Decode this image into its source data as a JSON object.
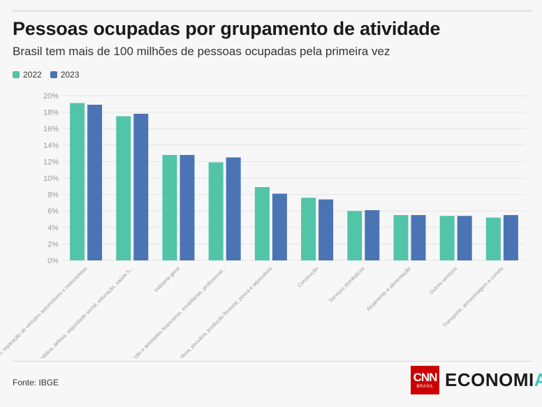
{
  "header": {
    "title": "Pessoas ocupadas por grupamento de atividade",
    "subtitle": "Brasil tem mais de 100 milhões de pessoas ocupadas pela primeira vez"
  },
  "footer": {
    "source": "Fonte: IBGE",
    "logo_cnn": "CNN",
    "logo_cnn_sub": "BRASIL",
    "logo_economia_main": "ECONOMI",
    "logo_economia_accent": "A"
  },
  "colors": {
    "2022": "#52c4a8",
    "2023": "#4a74b4",
    "grid": "#e3e3e3",
    "axis_text": "#999999"
  },
  "chart_data": {
    "type": "bar",
    "categories": [
      "Comércio, reparação de veículos automotores e motocicletas",
      "Administração pública, defesa, seguridade social, educação, saúde h...",
      "Indústria geral",
      "Informação, comunicação e atividades financeiras, imobiliárias, profissional...",
      "Agricultura, pecuária, produção florestal, pesca e aquicultura",
      "Construção",
      "Serviços domésticos",
      "Alojamento e alimentação",
      "Outros serviços",
      "Transporte, armazenagem e correio"
    ],
    "series": [
      {
        "name": "2022",
        "values": [
          19.1,
          17.5,
          12.8,
          11.9,
          8.9,
          7.6,
          6.0,
          5.5,
          5.4,
          5.2
        ]
      },
      {
        "name": "2023",
        "values": [
          18.9,
          17.8,
          12.8,
          12.5,
          8.1,
          7.4,
          6.1,
          5.5,
          5.4,
          5.5
        ]
      }
    ],
    "y_ticks": [
      "0%",
      "2%",
      "4%",
      "6%",
      "8%",
      "10%",
      "12%",
      "14%",
      "16%",
      "18%",
      "20%"
    ],
    "ylim": [
      0,
      20
    ],
    "grid": true,
    "legend_position": "top-left"
  }
}
